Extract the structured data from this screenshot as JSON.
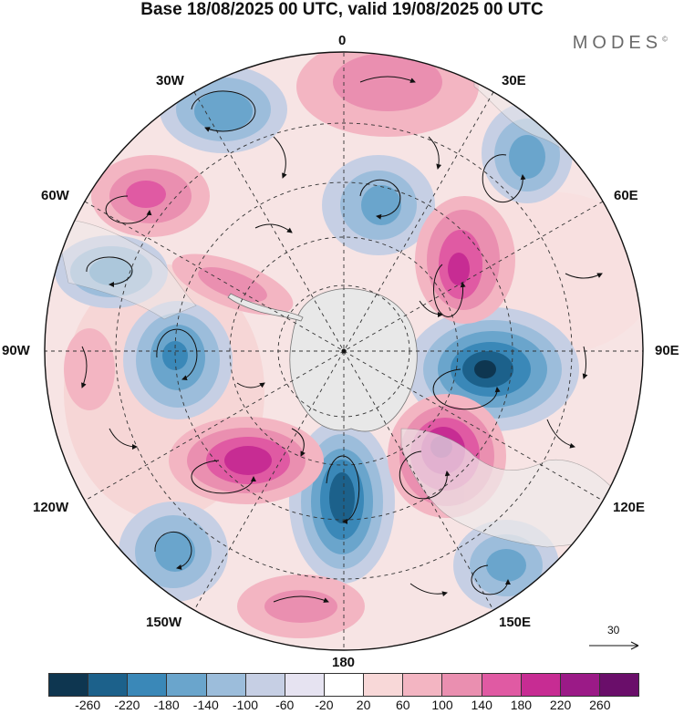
{
  "title": "Base 18/08/2025 00 UTC, valid 19/08/2025 00 UTC",
  "brand": "MODES",
  "brand_mark": "©",
  "longitude_labels": {
    "lon_0": "0",
    "lon_30e": "30E",
    "lon_60e": "60E",
    "lon_90e": "90E",
    "lon_120e": "120E",
    "lon_150e": "150E",
    "lon_180": "180",
    "lon_150w": "150W",
    "lon_120w": "120W",
    "lon_90w": "90W",
    "lon_60w": "60W",
    "lon_30w": "30W"
  },
  "reference_vector": "30",
  "colorbar": {
    "colors": [
      "#0e3650",
      "#1c618b",
      "#3a88b8",
      "#6aa5cc",
      "#9cbddb",
      "#c6cfe4",
      "#e6e3f1",
      "#ffffff",
      "#f8d8d8",
      "#f3b5c2",
      "#ea8fb0",
      "#e05aa3",
      "#c72c93",
      "#9b1a87",
      "#6a0e6a"
    ],
    "ticks": [
      "-260",
      "-220",
      "-180",
      "-140",
      "-100",
      "-60",
      "-20",
      "20",
      "60",
      "100",
      "140",
      "180",
      "220",
      "260"
    ]
  },
  "colors": {
    "land": "#e8e8e8",
    "grid": "#333333"
  }
}
